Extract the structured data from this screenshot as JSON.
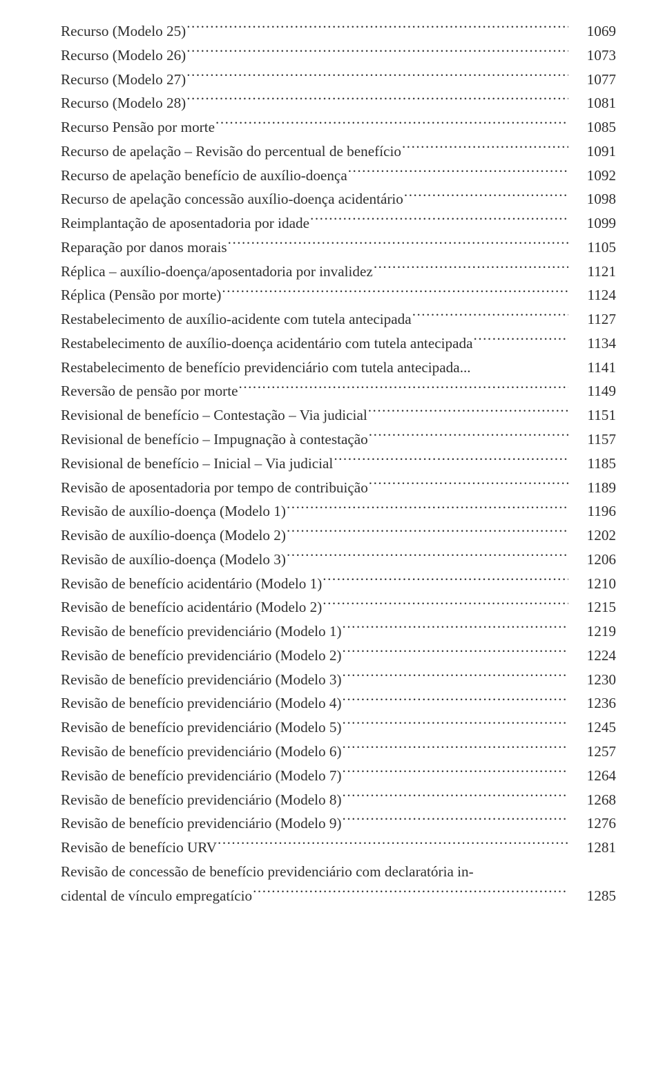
{
  "toc": [
    {
      "title": "Recurso (Modelo 25)",
      "page": "1069"
    },
    {
      "title": "Recurso (Modelo 26)",
      "page": "1073"
    },
    {
      "title": "Recurso (Modelo 27)",
      "page": "1077"
    },
    {
      "title": "Recurso (Modelo 28)",
      "page": "1081"
    },
    {
      "title": "Recurso Pensão por morte",
      "page": "1085"
    },
    {
      "title": "Recurso de apelação – Revisão do percentual de benefício",
      "page": "1091"
    },
    {
      "title": "Recurso de apelação benefício de auxílio-doença",
      "page": "1092"
    },
    {
      "title": "Recurso de apelação concessão auxílio-doença acidentário",
      "page": "1098"
    },
    {
      "title": "Reimplantação de aposentadoria por idade",
      "page": "1099"
    },
    {
      "title": "Reparação por danos morais",
      "page": "1105"
    },
    {
      "title": "Réplica – auxílio-doença/aposentadoria por invalidez",
      "page": "1121"
    },
    {
      "title": "Réplica (Pensão por morte)",
      "page": "1124"
    },
    {
      "title": "Restabelecimento de auxílio-acidente com tutela antecipada",
      "page": "1127"
    },
    {
      "title": "Restabelecimento de auxílio-doença acidentário com tutela antecipada",
      "page": "1134"
    },
    {
      "title": "Restabelecimento de benefício previdenciário com tutela antecipada",
      "page": "1141",
      "leaderSpace": true
    },
    {
      "title": "Reversão de pensão por morte",
      "page": "1149"
    },
    {
      "title": "Revisional de benefício – Contestação – Via judicial",
      "page": "1151"
    },
    {
      "title": "Revisional de benefício – Impugnação à contestação",
      "page": "1157"
    },
    {
      "title": "Revisional de benefício – Inicial – Via judicial",
      "page": "1185"
    },
    {
      "title": "Revisão de aposentadoria por tempo de contribuição",
      "page": "1189"
    },
    {
      "title": "Revisão de auxílio-doença (Modelo 1)",
      "page": "1196"
    },
    {
      "title": "Revisão de auxílio-doença (Modelo 2)",
      "page": "1202"
    },
    {
      "title": "Revisão de auxílio-doença (Modelo 3)",
      "page": "1206"
    },
    {
      "title": "Revisão de benefício acidentário (Modelo 1)",
      "page": "1210"
    },
    {
      "title": "Revisão de benefício acidentário (Modelo 2)",
      "page": "1215"
    },
    {
      "title": "Revisão de benefício previdenciário (Modelo 1)",
      "page": "1219"
    },
    {
      "title": "Revisão de benefício previdenciário (Modelo 2)",
      "page": "1224"
    },
    {
      "title": "Revisão de benefício previdenciário (Modelo 3)",
      "page": "1230"
    },
    {
      "title": "Revisão de benefício previdenciário (Modelo 4)",
      "page": "1236"
    },
    {
      "title": "Revisão de benefício previdenciário (Modelo 5)",
      "page": "1245"
    },
    {
      "title": "Revisão de benefício previdenciário (Modelo 6)",
      "page": "1257"
    },
    {
      "title": "Revisão de benefício previdenciário (Modelo 7)",
      "page": "1264"
    },
    {
      "title": "Revisão de benefício previdenciário (Modelo 8)",
      "page": "1268"
    },
    {
      "title": "Revisão de benefício previdenciário (Modelo 9)",
      "page": "1276"
    },
    {
      "title": "Revisão de benefício URV",
      "page": "1281"
    },
    {
      "wrapFirst": "Revisão de concessão de benefício previdenciário com declaratória in-",
      "wrapSecond": "cidental de vínculo empregatício",
      "page": "1285"
    }
  ]
}
